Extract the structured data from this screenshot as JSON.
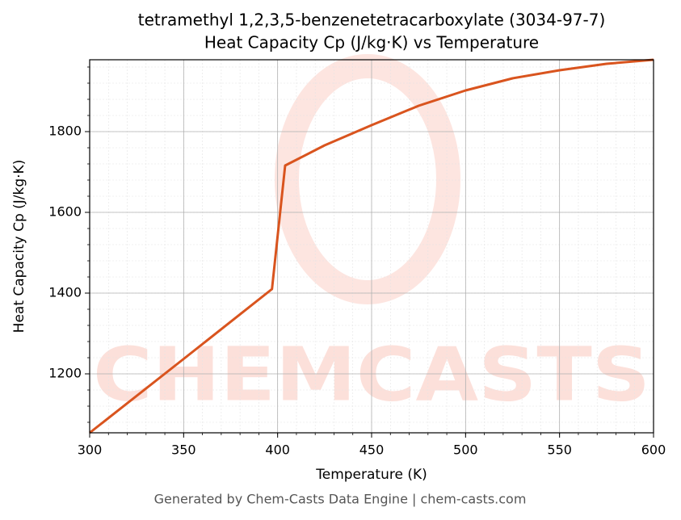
{
  "chart_data": {
    "type": "line",
    "title": "tetramethyl 1,2,3,5-benzenetetracarboxylate (3034-97-7)",
    "subtitle": "Heat Capacity Cp (J/kg·K) vs Temperature",
    "x_label": "Temperature (K)",
    "y_label": "Heat Capacity Cp (J/kg·K)",
    "watermark": "CHEMCASTS",
    "footer": "Generated by Chem-Casts Data Engine | chem-casts.com",
    "x": [
      300,
      350,
      397,
      404,
      425,
      450,
      475,
      500,
      525,
      550,
      575,
      600
    ],
    "series": [
      {
        "name": "Heat Capacity Cp",
        "color": "#d9541e",
        "values": [
          1054,
          1237,
          1410,
          1716,
          1766,
          1816,
          1864,
          1902,
          1932,
          1952,
          1968,
          1978
        ]
      }
    ],
    "xlim": [
      300,
      600
    ],
    "ylim": [
      1054,
      1978
    ],
    "xticks": [
      300,
      350,
      400,
      450,
      500,
      550,
      600
    ],
    "yticks": [
      1200,
      1400,
      1600,
      1800
    ],
    "grid": true,
    "minor_grid": true
  }
}
